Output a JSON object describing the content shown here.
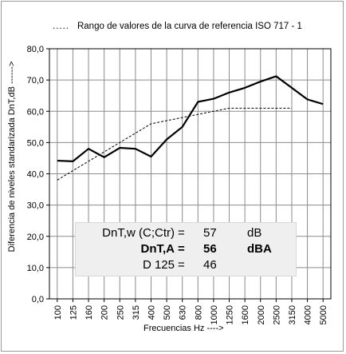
{
  "legend": {
    "dots": ".....",
    "text": "Rango de valores de la curva de referencia ISO 717 - 1"
  },
  "axes": {
    "ylabel": "Diferencia de niveles standarizada DnT,dB ------>",
    "xlabel": "Frecuencias Hz ---->"
  },
  "summary": [
    {
      "label": "DnT,w (C;Ctr)",
      "eq": "=",
      "value": "57",
      "unit": "dB",
      "bold": false
    },
    {
      "label": "DnT,A",
      "eq": "=",
      "value": "56",
      "unit": "dBA",
      "bold": true
    },
    {
      "label": "D 125",
      "eq": "=",
      "value": "46",
      "unit": "",
      "bold": false
    }
  ],
  "colors": {
    "measured": "#000000",
    "reference": "#000000",
    "grid": "#8c8c8c",
    "infobox": "#efefef"
  },
  "chart_data": {
    "type": "line",
    "categories": [
      "100",
      "125",
      "160",
      "200",
      "250",
      "315",
      "400",
      "500",
      "630",
      "800",
      "1000",
      "1250",
      "1600",
      "2000",
      "2500",
      "3150",
      "4000",
      "5000"
    ],
    "ylim": [
      0,
      80
    ],
    "yticks": [
      "0,0",
      "10,0",
      "20,0",
      "30,0",
      "40,0",
      "50,0",
      "60,0",
      "70,0",
      "80,0"
    ],
    "grid": true,
    "series": [
      {
        "style": "solid",
        "values": [
          44.2,
          44.0,
          48.0,
          45.3,
          48.3,
          48.0,
          45.5,
          51.0,
          55.0,
          63.0,
          64.0,
          66.0,
          67.5,
          69.5,
          71.2,
          67.5,
          63.8,
          62.3
        ]
      },
      {
        "style": "dashed",
        "values": [
          38.0,
          41.0,
          44.0,
          47.0,
          50.0,
          53.0,
          56.0,
          57.0,
          58.0,
          59.0,
          60.0,
          61.0,
          61.0,
          61.0,
          61.0,
          61.0,
          null,
          null
        ]
      }
    ]
  }
}
